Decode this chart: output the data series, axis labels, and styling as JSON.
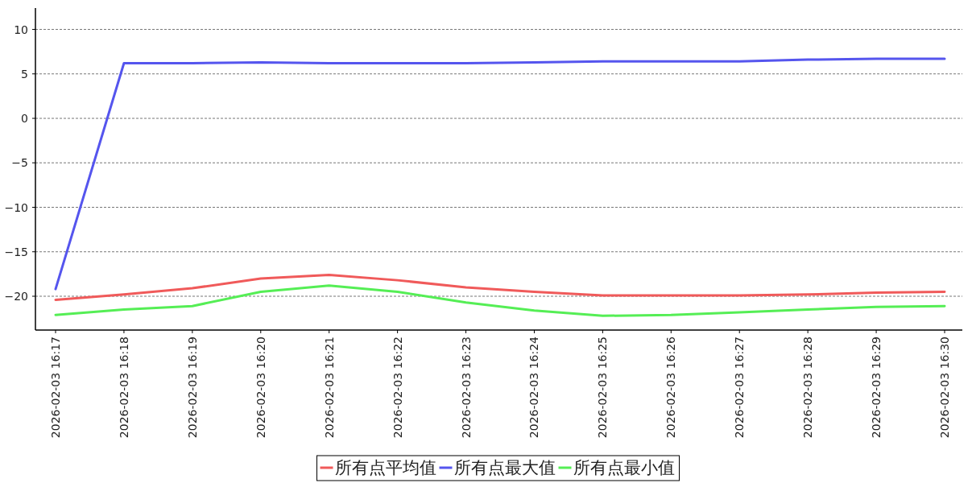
{
  "chart_data": {
    "type": "line",
    "categories": [
      "2026-02-03 16:17",
      "2026-02-03 16:18",
      "2026-02-03 16:19",
      "2026-02-03 16:20",
      "2026-02-03 16:21",
      "2026-02-03 16:22",
      "2026-02-03 16:23",
      "2026-02-03 16:24",
      "2026-02-03 16:25",
      "2026-02-03 16:26",
      "2026-02-03 16:27",
      "2026-02-03 16:28",
      "2026-02-03 16:29",
      "2026-02-03 16:30"
    ],
    "series": [
      {
        "name": "所有点平均值",
        "color": "#f05a5a",
        "values": [
          -20.4,
          -19.8,
          -19.1,
          -18.0,
          -17.6,
          -18.2,
          -19.0,
          -19.5,
          -19.9,
          -19.9,
          -19.9,
          -19.8,
          -19.6,
          -19.5
        ]
      },
      {
        "name": "所有点最大值",
        "color": "#5555ee",
        "values": [
          -19.2,
          6.2,
          6.2,
          6.3,
          6.2,
          6.2,
          6.2,
          6.3,
          6.4,
          6.4,
          6.4,
          6.6,
          6.7,
          6.7
        ]
      },
      {
        "name": "所有点最小值",
        "color": "#55ee55",
        "values": [
          -22.1,
          -21.5,
          -21.1,
          -19.5,
          -18.8,
          -19.5,
          -20.7,
          -21.6,
          -22.2,
          -22.1,
          -21.8,
          -21.5,
          -21.2,
          -21.1
        ]
      }
    ],
    "ylim": [
      -23.8,
      12.4
    ],
    "yticks": [
      10,
      5,
      0,
      -5,
      -10,
      -15,
      -20
    ],
    "grid": "y",
    "legend": "bottom",
    "marker": "none",
    "line_style": "solid"
  }
}
